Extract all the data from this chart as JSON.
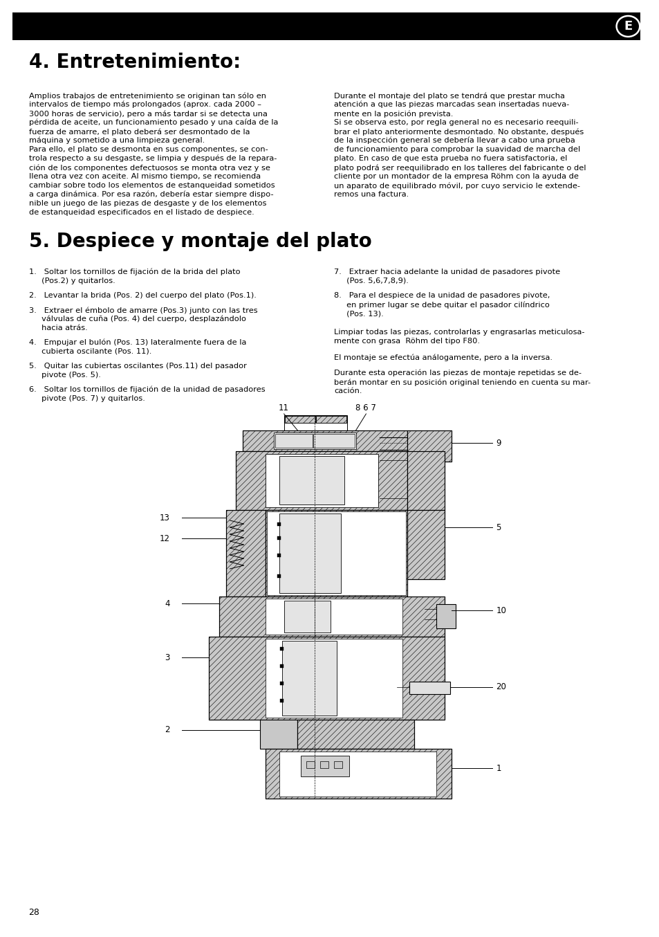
{
  "title_bar_color": "#000000",
  "circle_label": "E",
  "section4_title": "4. Entretenimiento:",
  "section5_title": "5. Despiece y montaje del plato",
  "bg_color": "#ffffff",
  "left_col_lines": [
    "Amplios trabajos de entretenimiento se originan tan sólo en",
    "intervalos de tiempo más prolongados (aprox. cada 2000 –",
    "3000 horas de servicio), pero a más tardar si se detecta una",
    "pérdida de aceite, un funcionamiento pesado y una caída de la",
    "fuerza de amarre, el plato deberá ser desmontado de la",
    "máquina y sometido a una limpieza general.",
    "Para ello, el plato se desmonta en sus componentes, se con-",
    "trola respecto a su desgaste, se limpia y después de la repara-",
    "ción de los componentes defectuosos se monta otra vez y se",
    "llena otra vez con aceite. Al mismo tiempo, se recomienda",
    "cambiar sobre todo los elementos de estanqueidad sometidos",
    "a carga dinámica. Por esa razón, debería estar siempre dispo-",
    "nible un juego de las piezas de desgaste y de los elementos",
    "de estanqueidad especificados en el listado de despiece."
  ],
  "right_col_lines": [
    "Durante el montaje del plato se tendrá que prestar mucha",
    "atención a que las piezas marcadas sean insertadas nueva-",
    "mente en la posición prevista.",
    "Si se observa esto, por regla general no es necesario reequili-",
    "brar el plato anteriormente desmontado. No obstante, después",
    "de la inspección general se debería llevar a cabo una prueba",
    "de funcionamiento para comprobar la suavidad de marcha del",
    "plato. En caso de que esta prueba no fuera satisfactoria, el",
    "plato podrá ser reequilibrado en los talleres del fabricante o del",
    "cliente por un montador de la empresa Röhm con la ayuda de",
    "un aparato de equilibrado móvil, por cuyo servicio le extende-",
    "remos una factura."
  ],
  "steps_left": [
    [
      "1.   Soltar los tornillos de fijación de la brida del plato",
      "     (Pos.2) y quitarlos."
    ],
    [
      "2.   Levantar la brida (Pos. 2) del cuerpo del plato (Pos.1)."
    ],
    [
      "3.   Extraer el émbolo de amarre (Pos.3) junto con las tres",
      "     válvulas de cuña (Pos. 4) del cuerpo, desplazándolo",
      "     hacia atrás."
    ],
    [
      "4.   Empujar el bulón (Pos. 13) lateralmente fuera de la",
      "     cubierta oscilante (Pos. 11)."
    ],
    [
      "5.   Quitar las cubiertas oscilantes (Pos.11) del pasador",
      "     pivote (Pos. 5)."
    ],
    [
      "6.   Soltar los tornillos de fijación de la unidad de pasadores",
      "     pivote (Pos. 7) y quitarlos."
    ]
  ],
  "steps_right": [
    [
      "7.   Extraer hacia adelante la unidad de pasadores pivote",
      "     (Pos. 5,6,7,8,9)."
    ],
    [
      "8.   Para el despiece de la unidad de pasadores pivote,",
      "     en primer lugar se debe quitar el pasador cilíndrico",
      "     (Pos. 13)."
    ]
  ],
  "clean_lines": [
    "Limpiar todas las piezas, controlarlas y engrasarlas meticulosa-",
    "mente con grasa  Röhm del tipo F80."
  ],
  "inverse_line": "El montaje se efectúa análogamente, pero a la inversa.",
  "repeat_lines": [
    "Durante esta operación las piezas de montaje repetidas se de-",
    "berán montar en su posición original teniendo en cuenta su mar-",
    "cación."
  ],
  "page_number": "28"
}
